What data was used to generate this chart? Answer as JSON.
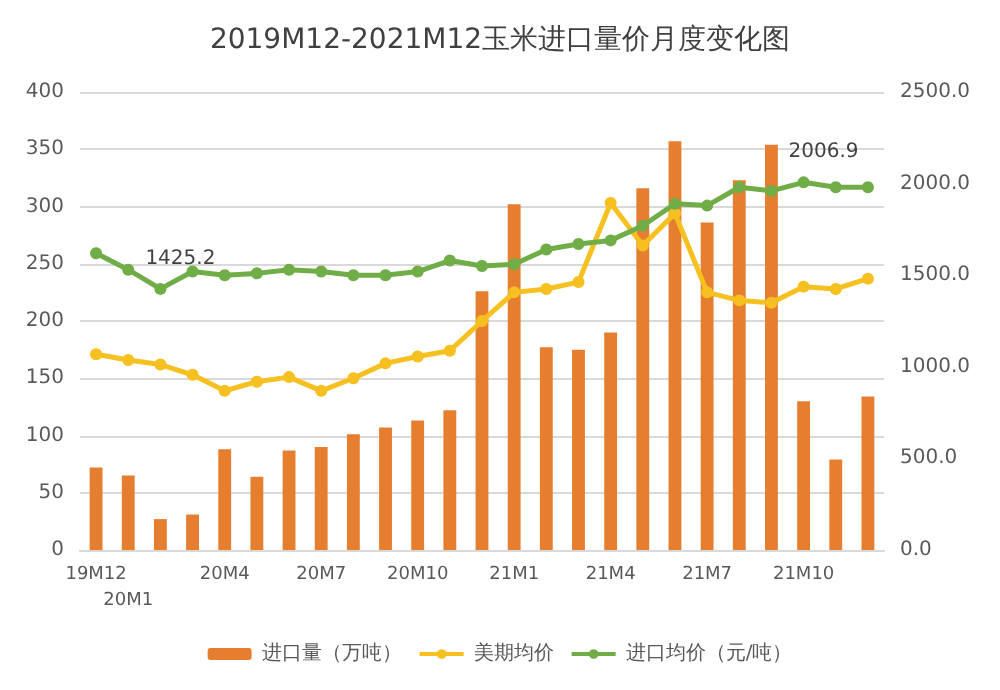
{
  "chart_data": {
    "type": "bar",
    "title": "2019M12-2021M12玉米进口量价月度变化图",
    "categories": [
      "19M12",
      "20M1",
      null,
      null,
      "20M4",
      null,
      null,
      "20M7",
      null,
      null,
      "20M10",
      null,
      null,
      "21M1",
      null,
      null,
      "21M4",
      null,
      null,
      "21M7",
      null,
      null,
      "21M10",
      null,
      null
    ],
    "series": [
      {
        "name": "进口量（万吨）",
        "color": "#e67e30",
        "values": [
          72,
          65,
          27,
          31,
          88,
          64,
          87,
          90,
          101,
          107,
          113,
          122,
          226,
          302,
          177,
          175,
          190,
          316,
          357,
          286,
          323,
          354,
          130,
          79,
          134
        ]
      },
      {
        "name": "美期均价",
        "type": "line",
        "color": "#f5c020",
        "values": [
          171,
          166,
          162,
          153,
          139,
          147,
          151,
          139,
          150,
          163,
          169,
          174,
          200,
          225,
          228,
          234,
          303,
          266,
          294,
          225,
          218,
          216,
          230,
          228,
          237
        ]
      },
      {
        "name": "进口均价（元/吨）",
        "type": "line",
        "axis": "y2",
        "color": "#70ad47",
        "values": [
          1620,
          1530,
          1425.2,
          1520,
          1500,
          1510,
          1530,
          1520,
          1500,
          1500,
          1520,
          1580,
          1550,
          1560,
          1640,
          1670,
          1690,
          1770,
          1890,
          1880,
          1980,
          1960,
          2006.9,
          1980,
          1980
        ],
        "value_labels": [
          null,
          null,
          "1425.2",
          null,
          null,
          null,
          null,
          null,
          null,
          null,
          null,
          null,
          null,
          null,
          null,
          null,
          null,
          null,
          null,
          null,
          null,
          null,
          "2006.9",
          null,
          null
        ]
      }
    ],
    "ylim": [
      0,
      400
    ],
    "yticks": [
      0,
      50,
      100,
      150,
      200,
      250,
      300,
      350,
      400
    ],
    "y2lim": [
      0,
      2500
    ],
    "y2ticks": [
      {
        "value": 0,
        "label": "0.0"
      },
      {
        "value": 500,
        "label": "500.0"
      },
      {
        "value": 1000,
        "label": "1000.0"
      },
      {
        "value": 1500,
        "label": "1500.0"
      },
      {
        "value": 2000,
        "label": "2000.0"
      },
      {
        "value": 2500,
        "label": "2500.0"
      }
    ],
    "grid": "y",
    "legend": "bottom",
    "marker": "circle"
  }
}
